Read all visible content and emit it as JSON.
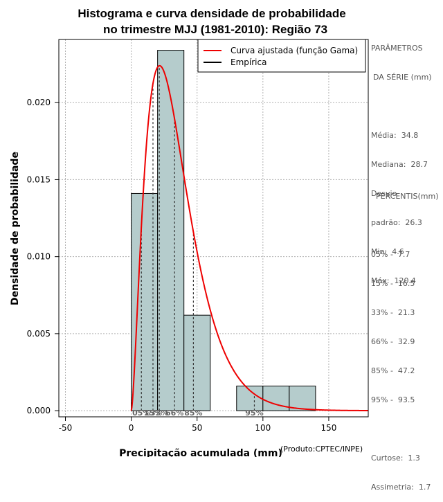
{
  "chart_data": {
    "type": "bar",
    "title_line1": "Histograma e curva densidade de probabilidade",
    "title_line2": "no trimestre MJJ (1981-2010): Região 73",
    "xlabel": "Precipitação acumulada (mm)",
    "ylabel": "Densidade de probabilidade",
    "product_note": "(Produto:CPTEC/INPE)",
    "xlim": [
      -55,
      180
    ],
    "ylim": [
      -0.0004,
      0.0241
    ],
    "x_ticks": [
      -50,
      0,
      50,
      100,
      150
    ],
    "x_tick_labels": [
      "-50",
      "0",
      "50",
      "100",
      "150"
    ],
    "y_ticks": [
      0.0,
      0.005,
      0.01,
      0.015,
      0.02
    ],
    "y_tick_labels": [
      "0.000",
      "0.005",
      "0.010",
      "0.015",
      "0.020"
    ],
    "grid": true,
    "histogram": {
      "bins": [
        {
          "x0": 0,
          "x1": 20,
          "density": 0.0141
        },
        {
          "x0": 20,
          "x1": 40,
          "density": 0.0234
        },
        {
          "x0": 40,
          "x1": 60,
          "density": 0.0062
        },
        {
          "x0": 60,
          "x1": 80,
          "density": 0.0
        },
        {
          "x0": 80,
          "x1": 100,
          "density": 0.0016
        },
        {
          "x0": 100,
          "x1": 120,
          "density": 0.0016
        },
        {
          "x0": 120,
          "x1": 140,
          "density": 0.0016
        }
      ],
      "fill": "#b5cccc"
    },
    "fitted_curve": {
      "name": "Curva ajustada (função Gama)",
      "color": "#ee0000",
      "distribution": "gamma",
      "shape": 2.62,
      "scale": 13.3,
      "x_start": 0,
      "x_end": 180
    },
    "empirical_line": {
      "name": "Empírica",
      "color": "#000000"
    },
    "percentile_lines": [
      {
        "label": "05%",
        "value": 7.7
      },
      {
        "label": "15%",
        "value": 16.5
      },
      {
        "label": "33%",
        "value": 21.3
      },
      {
        "label": "66%",
        "value": 32.9
      },
      {
        "label": "85%",
        "value": 47.2
      },
      {
        "label": "95%",
        "value": 93.5
      }
    ],
    "legend_position": "top-right"
  },
  "parametros": {
    "heading1": "PARÂMETROS",
    "heading2": "DA SÉRIE (mm)",
    "media": "Média:  34.8",
    "mediana": "Mediana:  28.7",
    "desvio1": "Desvio",
    "desvio2": "padrão:  26.3",
    "min": "Min:  4.6",
    "max": "Máx:  120.4"
  },
  "percentis": {
    "heading": "PERCENTIS(mm)",
    "p05": "05% -  7.7",
    "p15": "15% -  16.5",
    "p33": "33% -  21.3",
    "p66": "66% -  32.9",
    "p85": "85% -  47.2",
    "p95": "95% -  93.5",
    "curtose": "Curtose:  1.3",
    "assimetria": "Assimetria:  1.7"
  }
}
